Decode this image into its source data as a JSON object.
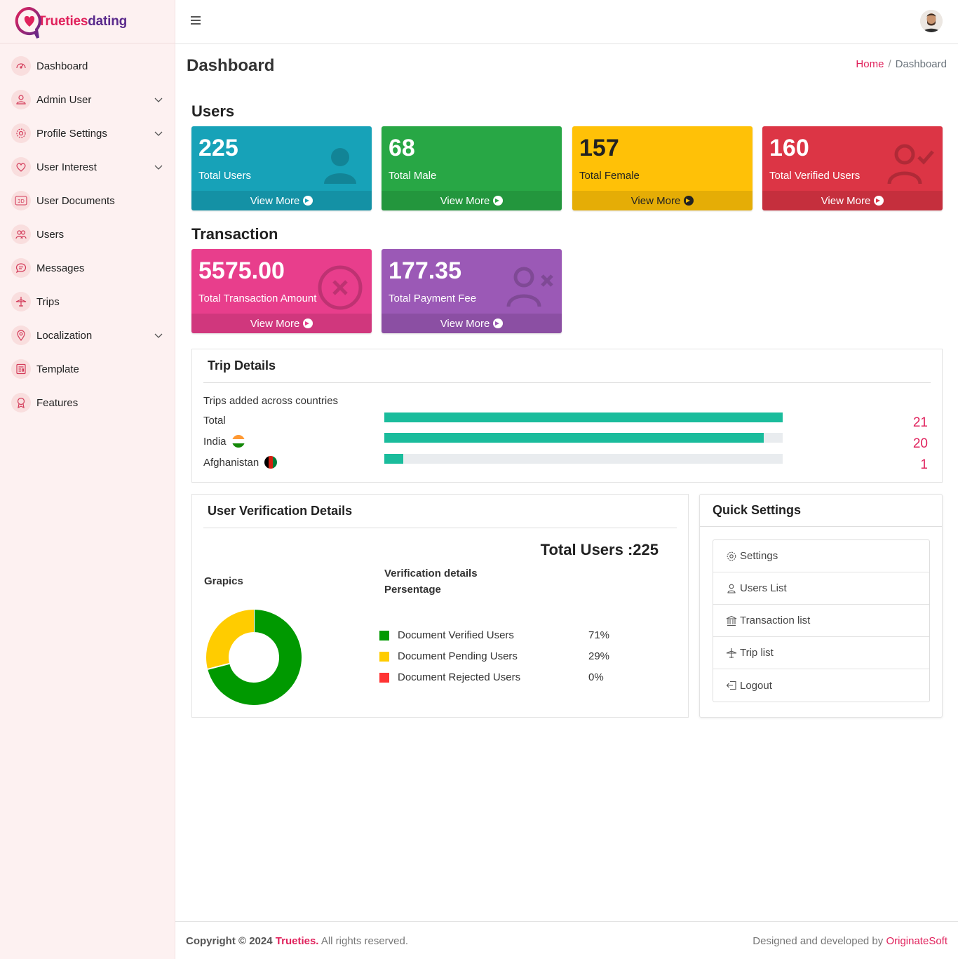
{
  "brand": {
    "part1": "Trueties",
    "part2": "dating"
  },
  "sidebar": {
    "items": [
      {
        "label": "Dashboard",
        "icon": "gauge-icon",
        "has_submenu": false
      },
      {
        "label": "Admin User",
        "icon": "user-icon",
        "has_submenu": true
      },
      {
        "label": "Profile Settings",
        "icon": "gear-icon",
        "has_submenu": true
      },
      {
        "label": "User Interest",
        "icon": "heart-icon",
        "has_submenu": true
      },
      {
        "label": "User Documents",
        "icon": "3d-icon",
        "has_submenu": false
      },
      {
        "label": "Users",
        "icon": "users-icon",
        "has_submenu": false
      },
      {
        "label": "Messages",
        "icon": "chat-icon",
        "has_submenu": false
      },
      {
        "label": "Trips",
        "icon": "airplane-icon",
        "has_submenu": false
      },
      {
        "label": "Localization",
        "icon": "map-pin-icon",
        "has_submenu": true
      },
      {
        "label": "Template",
        "icon": "document-icon",
        "has_submenu": false
      },
      {
        "label": "Features",
        "icon": "award-icon",
        "has_submenu": false
      }
    ]
  },
  "page": {
    "title": "Dashboard"
  },
  "breadcrumb": {
    "home": "Home",
    "sep": "/",
    "current": "Dashboard"
  },
  "users_section": {
    "title": "Users",
    "cards": [
      {
        "value": "225",
        "label": "Total Users",
        "more": "View More",
        "color": "#17a2b8",
        "icon": "person-icon"
      },
      {
        "value": "68",
        "label": "Total Male",
        "more": "View More",
        "color": "#28a745",
        "icon": "none"
      },
      {
        "value": "157",
        "label": "Total Female",
        "more": "View More",
        "color": "#ffc107",
        "icon": "none"
      },
      {
        "value": "160",
        "label": "Total Verified Users",
        "more": "View More",
        "color": "#dc3545",
        "icon": "user-check-icon"
      }
    ]
  },
  "transaction_section": {
    "title": "Transaction",
    "cards": [
      {
        "value": "5575.00",
        "label": "Total Transaction Amount",
        "more": "View More",
        "color": "#e83e8c",
        "icon": "x-circle-icon"
      },
      {
        "value": "177.35",
        "label": "Total Payment Fee",
        "more": "View More",
        "color": "#9b59b6",
        "icon": "user-x-icon"
      }
    ]
  },
  "trip_details": {
    "title": "Trip Details",
    "subtitle": "Trips added across countries",
    "rows": [
      {
        "label": "Total",
        "value": "21",
        "fraction": 1.0,
        "flag": ""
      },
      {
        "label": "India",
        "value": "20",
        "fraction": 0.952,
        "flag": "india-flag-icon"
      },
      {
        "label": "Afghanistan",
        "value": "1",
        "fraction": 0.048,
        "flag": "afghanistan-flag-icon"
      }
    ]
  },
  "verification": {
    "title": "User Verification Details",
    "total_label": "Total Users :225",
    "graphics_label": "Grapics",
    "details_heading_1": "Verification details",
    "details_heading_2": "Persentage",
    "legend": [
      {
        "label": "Document Verified Users",
        "pct": "71%",
        "value": 71,
        "color": "#009900"
      },
      {
        "label": "Document Pending Users",
        "pct": "29%",
        "value": 29,
        "color": "#ffcc00"
      },
      {
        "label": "Document Rejected Users",
        "pct": "0%",
        "value": 0,
        "color": "#ff3333"
      }
    ]
  },
  "quick_settings": {
    "title": "Quick Settings",
    "items": [
      {
        "label": "Settings",
        "icon": "gear-icon"
      },
      {
        "label": "Users List",
        "icon": "user-icon"
      },
      {
        "label": "Transaction list",
        "icon": "bank-icon"
      },
      {
        "label": "Trip list",
        "icon": "airplane-icon"
      },
      {
        "label": "Logout",
        "icon": "logout-icon"
      }
    ]
  },
  "footer": {
    "copyright": "Copyright © 2024",
    "brand": "Trueties.",
    "rights": "All rights reserved.",
    "designed_by": "Designed and developed by",
    "company": "OriginateSoft"
  }
}
